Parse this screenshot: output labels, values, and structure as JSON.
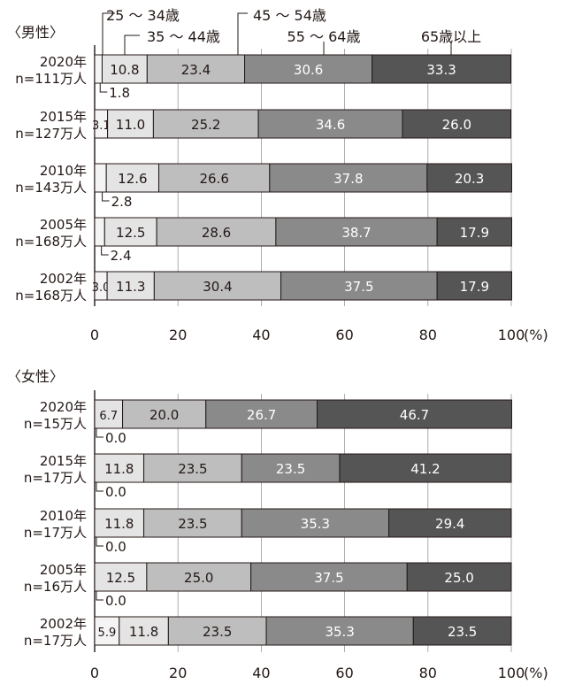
{
  "chart_data": [
    {
      "type": "bar",
      "stacked": true,
      "orientation": "horizontal",
      "panel_label": "〈男性〉",
      "categories": [
        {
          "year": "2020年",
          "n": "n=111万人"
        },
        {
          "year": "2015年",
          "n": "n=127万人"
        },
        {
          "year": "2010年",
          "n": "n=143万人"
        },
        {
          "year": "2005年",
          "n": "n=168万人"
        },
        {
          "year": "2002年",
          "n": "n=168万人"
        }
      ],
      "series": [
        {
          "name": "25 ～ 34歳",
          "values": [
            1.8,
            3.1,
            2.8,
            2.4,
            3.0
          ],
          "labels": [
            "1.8",
            "3.1",
            "2.8",
            "2.4",
            "3.0"
          ]
        },
        {
          "name": "35 ～ 44歳",
          "values": [
            10.8,
            11.0,
            12.6,
            12.5,
            11.3
          ],
          "labels": [
            "10.8",
            "11.0",
            "12.6",
            "12.5",
            "11.3"
          ]
        },
        {
          "name": "45 ～ 54歳",
          "values": [
            23.4,
            25.2,
            26.6,
            28.6,
            30.4
          ],
          "labels": [
            "23.4",
            "25.2",
            "26.6",
            "28.6",
            "30.4"
          ]
        },
        {
          "name": "55 ～ 64歳",
          "values": [
            30.6,
            34.6,
            37.8,
            38.7,
            37.5
          ],
          "labels": [
            "30.6",
            "34.6",
            "37.8",
            "38.7",
            "37.5"
          ]
        },
        {
          "name": "65歳以上",
          "values": [
            33.3,
            26.0,
            20.3,
            17.9,
            17.9
          ],
          "labels": [
            "33.3",
            "26.0",
            "20.3",
            "17.9",
            "17.9"
          ]
        }
      ],
      "xlim": [
        0,
        100
      ],
      "xticks": [
        "0",
        "20",
        "40",
        "60",
        "80",
        "100"
      ],
      "xunit": "(%)"
    },
    {
      "type": "bar",
      "stacked": true,
      "orientation": "horizontal",
      "panel_label": "〈女性〉",
      "categories": [
        {
          "year": "2020年",
          "n": "n=15万人"
        },
        {
          "year": "2015年",
          "n": "n=17万人"
        },
        {
          "year": "2010年",
          "n": "n=17万人"
        },
        {
          "year": "2005年",
          "n": "n=16万人"
        },
        {
          "year": "2002年",
          "n": "n=17万人"
        }
      ],
      "series": [
        {
          "name": "25 ～ 34歳",
          "values": [
            0.0,
            0.0,
            0.0,
            0.0,
            5.9
          ],
          "labels": [
            "0.0",
            "0.0",
            "0.0",
            "0.0",
            "5.9"
          ]
        },
        {
          "name": "35 ～ 44歳",
          "values": [
            6.7,
            11.8,
            11.8,
            12.5,
            11.8
          ],
          "labels": [
            "6.7",
            "11.8",
            "11.8",
            "12.5",
            "11.8"
          ]
        },
        {
          "name": "45 ～ 54歳",
          "values": [
            20.0,
            23.5,
            23.5,
            25.0,
            23.5
          ],
          "labels": [
            "20.0",
            "23.5",
            "23.5",
            "25.0",
            "23.5"
          ]
        },
        {
          "name": "55 ～ 64歳",
          "values": [
            26.7,
            23.5,
            35.3,
            37.5,
            35.3
          ],
          "labels": [
            "26.7",
            "23.5",
            "35.3",
            "37.5",
            "35.3"
          ]
        },
        {
          "name": "65歳以上",
          "values": [
            46.7,
            41.2,
            29.4,
            25.0,
            23.5
          ],
          "labels": [
            "46.7",
            "41.2",
            "29.4",
            "25.0",
            "23.5"
          ]
        }
      ],
      "xlim": [
        0,
        100
      ],
      "xticks": [
        "0",
        "20",
        "40",
        "60",
        "80",
        "100"
      ],
      "xunit": "(%)"
    }
  ],
  "colors": {
    "segments": [
      "#f4f4f4",
      "#e4e4e4",
      "#bebebe",
      "#8a8a8a",
      "#555555"
    ],
    "dark_text": "#231815",
    "light_text": "#ffffff",
    "stroke": "#231815"
  }
}
